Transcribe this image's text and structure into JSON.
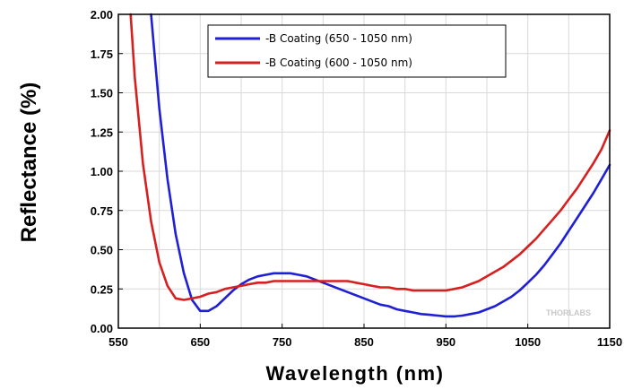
{
  "chart_data": {
    "type": "line",
    "title": "",
    "xlabel": "Wavelength (nm)",
    "ylabel": "Reflectance (%)",
    "xlim": [
      550,
      1150
    ],
    "ylim": [
      0.0,
      2.0
    ],
    "x_ticks": [
      "550",
      "650",
      "750",
      "850",
      "950",
      "1050",
      "1150"
    ],
    "y_ticks": [
      "0.00",
      "0.25",
      "0.50",
      "0.75",
      "1.00",
      "1.25",
      "1.50",
      "1.75",
      "2.00"
    ],
    "grid": true,
    "legend_position": "top-center",
    "watermark": "THORLABS",
    "series": [
      {
        "name": "-B Coating (650 - 1050 nm)",
        "color": "#1f1fd6",
        "x": [
          590,
          600,
          610,
          620,
          630,
          640,
          650,
          660,
          670,
          680,
          690,
          700,
          710,
          720,
          730,
          740,
          750,
          760,
          770,
          780,
          790,
          800,
          810,
          820,
          830,
          840,
          850,
          860,
          870,
          880,
          890,
          900,
          910,
          920,
          930,
          940,
          950,
          960,
          970,
          980,
          990,
          1000,
          1010,
          1020,
          1030,
          1040,
          1050,
          1060,
          1070,
          1080,
          1090,
          1100,
          1110,
          1120,
          1130,
          1140,
          1150
        ],
        "values": [
          2.0,
          1.4,
          0.95,
          0.6,
          0.35,
          0.18,
          0.11,
          0.11,
          0.14,
          0.19,
          0.24,
          0.28,
          0.31,
          0.33,
          0.34,
          0.35,
          0.35,
          0.35,
          0.34,
          0.33,
          0.31,
          0.29,
          0.27,
          0.25,
          0.23,
          0.21,
          0.19,
          0.17,
          0.15,
          0.14,
          0.12,
          0.11,
          0.1,
          0.09,
          0.085,
          0.08,
          0.075,
          0.075,
          0.08,
          0.09,
          0.1,
          0.12,
          0.14,
          0.17,
          0.2,
          0.24,
          0.29,
          0.34,
          0.4,
          0.47,
          0.54,
          0.62,
          0.7,
          0.78,
          0.86,
          0.95,
          1.04
        ]
      },
      {
        "name": "-B Coating (600 - 1050 nm)",
        "color": "#d81f1f",
        "x": [
          565,
          570,
          580,
          590,
          600,
          610,
          620,
          630,
          640,
          650,
          660,
          670,
          680,
          690,
          700,
          710,
          720,
          730,
          740,
          750,
          760,
          770,
          780,
          790,
          800,
          810,
          820,
          830,
          840,
          850,
          860,
          870,
          880,
          890,
          900,
          910,
          920,
          930,
          940,
          950,
          960,
          970,
          980,
          990,
          1000,
          1010,
          1020,
          1030,
          1040,
          1050,
          1060,
          1070,
          1080,
          1090,
          1100,
          1110,
          1120,
          1130,
          1140,
          1150
        ],
        "values": [
          2.0,
          1.6,
          1.05,
          0.68,
          0.42,
          0.27,
          0.19,
          0.18,
          0.19,
          0.2,
          0.22,
          0.23,
          0.25,
          0.26,
          0.27,
          0.28,
          0.29,
          0.29,
          0.3,
          0.3,
          0.3,
          0.3,
          0.3,
          0.3,
          0.3,
          0.3,
          0.3,
          0.3,
          0.29,
          0.28,
          0.27,
          0.26,
          0.26,
          0.25,
          0.25,
          0.24,
          0.24,
          0.24,
          0.24,
          0.24,
          0.25,
          0.26,
          0.28,
          0.3,
          0.33,
          0.36,
          0.39,
          0.43,
          0.47,
          0.52,
          0.57,
          0.63,
          0.69,
          0.75,
          0.82,
          0.89,
          0.97,
          1.05,
          1.14,
          1.26
        ]
      }
    ]
  }
}
